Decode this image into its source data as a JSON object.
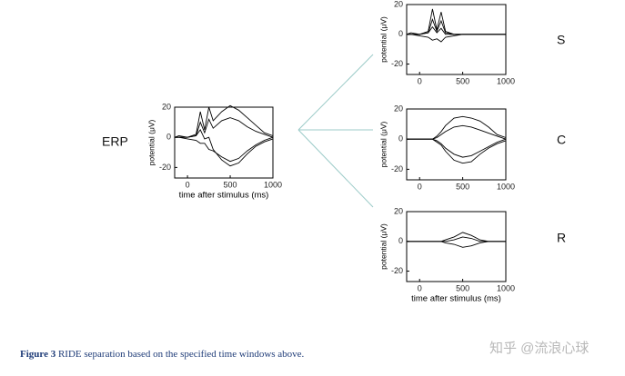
{
  "chart_data": [
    {
      "type": "line",
      "title": "ERP",
      "ylabel": "potential (μV)",
      "xlabel": "time after stimulus (ms)",
      "x": [
        -150,
        -100,
        0,
        100,
        150,
        200,
        250,
        300,
        400,
        500,
        600,
        700,
        800,
        900,
        1000
      ],
      "xlim": [
        -150,
        1000
      ],
      "ylim": [
        -27,
        20
      ],
      "xticks": [
        0,
        500,
        1000
      ],
      "yticks": [
        -20,
        0,
        20
      ],
      "series": [
        {
          "color": "#000000",
          "values": [
            0,
            0,
            0,
            2,
            17,
            5,
            20,
            11,
            17,
            21,
            18,
            13,
            8,
            3,
            1
          ]
        },
        {
          "color": "#000000",
          "values": [
            0,
            1,
            0,
            1,
            10,
            3,
            12,
            6,
            11,
            13,
            11,
            7,
            4,
            2,
            0
          ]
        },
        {
          "color": "#000000",
          "values": [
            0,
            0,
            -1,
            -2,
            -4,
            -4,
            -8,
            -9,
            -13,
            -16,
            -14,
            -9,
            -5,
            -2,
            0
          ]
        },
        {
          "color": "#000000",
          "values": [
            0,
            0,
            0,
            1,
            5,
            -1,
            0,
            -8,
            -15,
            -19,
            -17,
            -11,
            -6,
            -3,
            -1
          ]
        }
      ]
    },
    {
      "type": "line",
      "title": "S",
      "ylabel": "potential (μV)",
      "x": [
        -150,
        -100,
        0,
        100,
        150,
        200,
        250,
        300,
        400,
        500,
        600,
        700,
        800,
        900,
        1000
      ],
      "xlim": [
        -150,
        1000
      ],
      "ylim": [
        -27,
        20
      ],
      "xticks": [
        0,
        500,
        1000
      ],
      "yticks": [
        -20,
        0,
        20
      ],
      "series": [
        {
          "color": "#000000",
          "values": [
            0,
            0,
            0,
            2,
            17,
            3,
            15,
            2,
            0,
            0,
            0,
            0,
            0,
            0,
            0
          ]
        },
        {
          "color": "#000000",
          "values": [
            0,
            1,
            0,
            1,
            10,
            2,
            9,
            1,
            0,
            0,
            0,
            0,
            0,
            0,
            0
          ]
        },
        {
          "color": "#000000",
          "values": [
            0,
            0,
            -1,
            -2,
            -4,
            -3,
            -5,
            -2,
            -1,
            0,
            0,
            0,
            0,
            0,
            0
          ]
        },
        {
          "color": "#000000",
          "values": [
            0,
            0,
            0,
            1,
            5,
            1,
            4,
            0,
            0,
            0,
            0,
            0,
            0,
            0,
            0
          ]
        }
      ]
    },
    {
      "type": "line",
      "title": "C",
      "ylabel": "potential (μV)",
      "x": [
        -150,
        -100,
        0,
        100,
        150,
        200,
        250,
        300,
        400,
        500,
        600,
        700,
        800,
        900,
        1000
      ],
      "xlim": [
        -150,
        1000
      ],
      "ylim": [
        -27,
        20
      ],
      "xticks": [
        0,
        500,
        1000
      ],
      "yticks": [
        -20,
        0,
        20
      ],
      "series": [
        {
          "color": "#000000",
          "values": [
            0,
            0,
            0,
            0,
            0,
            2,
            5,
            9,
            14,
            15,
            14,
            12,
            8,
            3,
            1
          ]
        },
        {
          "color": "#000000",
          "values": [
            0,
            0,
            0,
            0,
            0,
            1,
            3,
            5,
            8,
            9,
            8,
            6,
            4,
            2,
            0
          ]
        },
        {
          "color": "#000000",
          "values": [
            0,
            0,
            0,
            0,
            0,
            -1,
            -3,
            -6,
            -10,
            -12,
            -11,
            -8,
            -5,
            -2,
            0
          ]
        },
        {
          "color": "#000000",
          "values": [
            0,
            0,
            0,
            0,
            0,
            -2,
            -4,
            -8,
            -14,
            -16,
            -15,
            -10,
            -6,
            -3,
            -1
          ]
        }
      ]
    },
    {
      "type": "line",
      "title": "R",
      "ylabel": "potential (μV)",
      "xlabel": "time after stimulus (ms)",
      "x": [
        -150,
        -100,
        0,
        100,
        150,
        200,
        250,
        300,
        400,
        500,
        600,
        700,
        800,
        900,
        1000
      ],
      "xlim": [
        -150,
        1000
      ],
      "ylim": [
        -27,
        20
      ],
      "xticks": [
        0,
        500,
        1000
      ],
      "yticks": [
        -20,
        0,
        20
      ],
      "series": [
        {
          "color": "#000000",
          "values": [
            0,
            0,
            0,
            0,
            0,
            0,
            0,
            1,
            3,
            6,
            4,
            1,
            0,
            0,
            0
          ]
        },
        {
          "color": "#000000",
          "values": [
            0,
            0,
            0,
            0,
            0,
            0,
            0,
            -1,
            -2,
            -4,
            -3,
            -1,
            0,
            0,
            0
          ]
        },
        {
          "color": "#000000",
          "values": [
            0,
            0,
            0,
            0,
            0,
            0,
            0,
            0,
            1,
            3,
            2,
            0,
            0,
            0,
            0
          ]
        }
      ]
    }
  ],
  "caption": {
    "label": "Figure 3",
    "text": "RIDE separation based on the specified time windows above."
  },
  "watermark": "知乎 @流浪心球"
}
